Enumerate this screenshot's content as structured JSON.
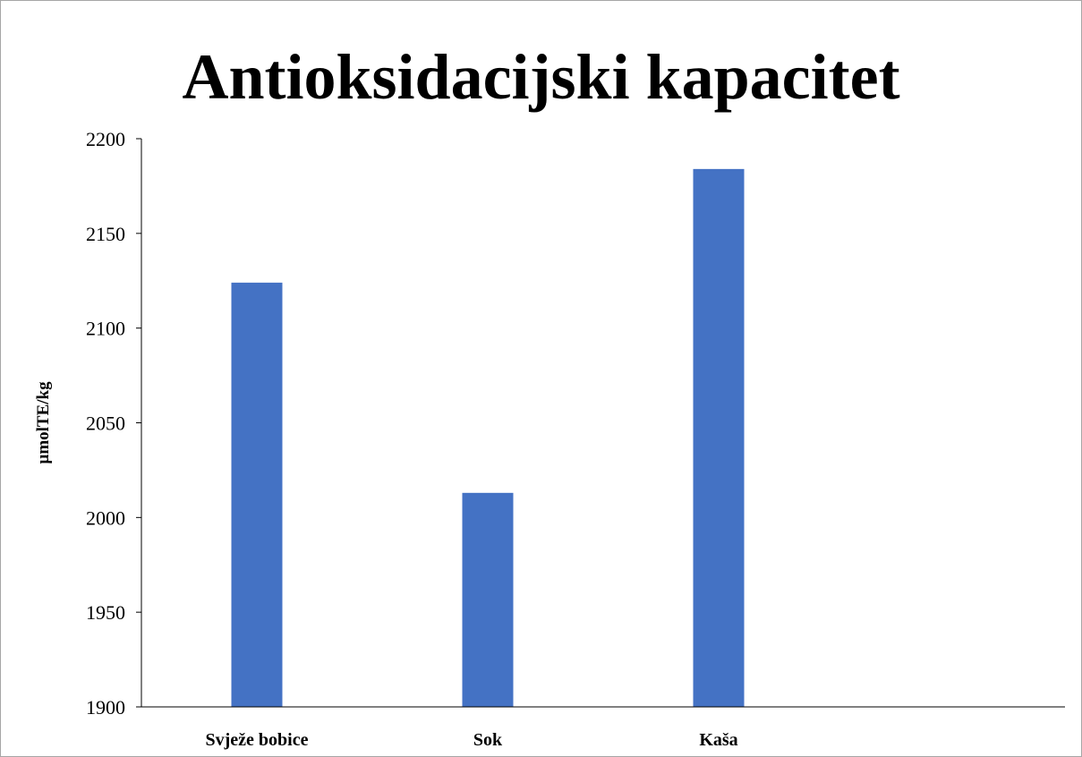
{
  "chart_data": {
    "type": "bar",
    "title": "Antioksidacijski kapacitet",
    "xlabel": "",
    "ylabel": "µmolTE/kg",
    "categories": [
      "Svježe bobice",
      "Sok",
      "Kaša",
      ""
    ],
    "values": [
      2124,
      2013,
      2184,
      null
    ],
    "ylim": [
      1900,
      2200
    ],
    "yticks": [
      1900,
      1950,
      2000,
      2050,
      2100,
      2150,
      2200
    ],
    "bar_color": "#4472c4",
    "grid": false,
    "legend": "none"
  }
}
